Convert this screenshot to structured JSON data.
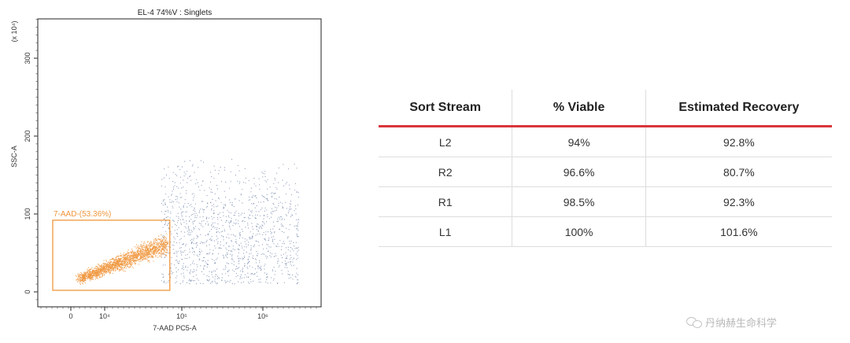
{
  "chart_data": [
    {
      "type": "scatter",
      "title": "EL-4 74%V : Singlets",
      "xlabel": "7-AAD PC5-A",
      "ylabel": "SSC-A",
      "y_multiplier_label": "(x 10⁴)",
      "x_scale": "biexponential",
      "x_ticks": [
        {
          "value": 0,
          "label": "0"
        },
        {
          "value": 10000,
          "label": "10⁴"
        },
        {
          "value": 100000,
          "label": "10⁵"
        },
        {
          "value": 1000000,
          "label": "10⁶"
        }
      ],
      "y_ticks": [
        0,
        100,
        200,
        300
      ],
      "ylim": [
        -10,
        350
      ],
      "gate": {
        "label": "7-AAD-(53.36%)",
        "x_range": [
          -3000,
          70000
        ],
        "y_range": [
          2,
          92
        ]
      },
      "series": [
        {
          "color": "#f0963c",
          "density": "dense",
          "x_range": [
            1500,
            70000
          ],
          "y_range": [
            15,
            80
          ],
          "count": 1800
        },
        {
          "color": "#7e8fb0",
          "density": "sparse",
          "x_range": [
            30000,
            3500000
          ],
          "y_range": [
            10,
            175
          ],
          "count": 1400
        }
      ]
    },
    {
      "type": "table",
      "columns": [
        "Sort Stream",
        "% Viable",
        "Estimated Recovery"
      ],
      "rows": [
        [
          "L2",
          "94%",
          "92.8%"
        ],
        [
          "R2",
          "96.6%",
          "80.7%"
        ],
        [
          "R1",
          "98.5%",
          "92.3%"
        ],
        [
          "L1",
          "100%",
          "101.6%"
        ]
      ]
    }
  ],
  "colors": {
    "table_header_rule": "#d9353a",
    "gate": "#f0963c",
    "live_events": "#f0963c",
    "dead_events": "#7e8fb0"
  },
  "watermark": {
    "icon": "wechat-icon",
    "text": "丹纳赫生命科学"
  }
}
